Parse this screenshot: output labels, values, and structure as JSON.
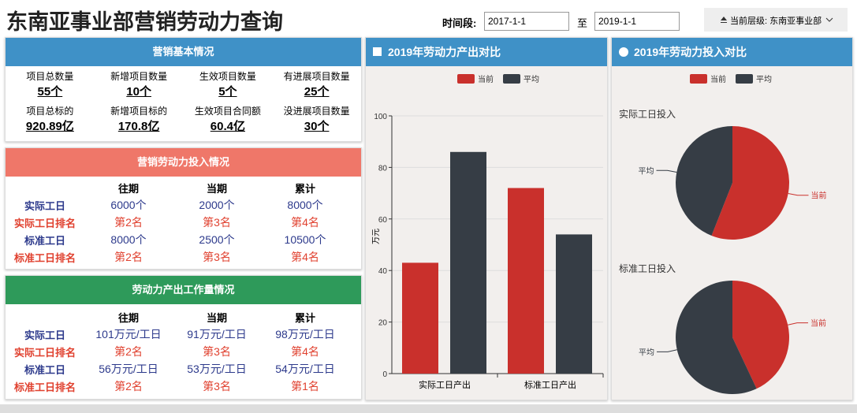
{
  "header": {
    "title": "东南亚事业部营销劳动力查询",
    "period_label": "时间段:",
    "start_date": "2017-1-1",
    "to": "至",
    "end_date": "2019-1-1",
    "level": "当前层级: 东南亚事业部"
  },
  "basic": {
    "title": "营销基本情况",
    "items": [
      {
        "label": "项目总数量",
        "value": "55个"
      },
      {
        "label": "新增项目数量",
        "value": "10个"
      },
      {
        "label": "生效项目数量",
        "value": "5个"
      },
      {
        "label": "有进展项目数量",
        "value": "25个"
      },
      {
        "label": "项目总标的",
        "value": "920.89亿"
      },
      {
        "label": "新增项目标的",
        "value": "170.8亿"
      },
      {
        "label": "生效项目合同额",
        "value": "60.4亿"
      },
      {
        "label": "没进展项目数量",
        "value": "30个"
      }
    ]
  },
  "input": {
    "title": "营销劳动力投入情况",
    "columns": [
      "往期",
      "当期",
      "累计"
    ],
    "rows": [
      {
        "label": "实际工日",
        "cells": [
          "6000个",
          "2000个",
          "8000个"
        ]
      },
      {
        "label": "实际工日排名",
        "cells": [
          "第2名",
          "第3名",
          "第4名"
        ]
      },
      {
        "label": "标准工日",
        "cells": [
          "8000个",
          "2500个",
          "10500个"
        ]
      },
      {
        "label": "标准工日排名",
        "cells": [
          "第2名",
          "第3名",
          "第4名"
        ]
      }
    ]
  },
  "output": {
    "title": "劳动力产出工作量情况",
    "columns": [
      "往期",
      "当期",
      "累计"
    ],
    "rows": [
      {
        "label": "实际工日",
        "cells": [
          "101万元/工日",
          "91万元/工日",
          "98万元/工日"
        ]
      },
      {
        "label": "实际工日排名",
        "cells": [
          "第2名",
          "第3名",
          "第4名"
        ]
      },
      {
        "label": "标准工日",
        "cells": [
          "56万元/工日",
          "53万元/工日",
          "54万元/工日"
        ]
      },
      {
        "label": "标准工日排名",
        "cells": [
          "第2名",
          "第3名",
          "第1名"
        ]
      }
    ]
  },
  "pie_panel": {
    "title": "2019年劳动力投入对比"
  },
  "chart_data": [
    {
      "type": "bar",
      "title": "2019年劳动力产出对比",
      "y_label": "万元",
      "categories": [
        "实际工日产出",
        "标准工日产出"
      ],
      "series": [
        {
          "name": "当前",
          "color": "#c9302c",
          "values": [
            43,
            72
          ]
        },
        {
          "name": "平均",
          "color": "#363d45",
          "values": [
            86,
            54
          ]
        }
      ],
      "ylim": [
        0,
        100
      ],
      "yticks": [
        0,
        20,
        40,
        60,
        80,
        100
      ],
      "grid": true
    },
    {
      "type": "pie",
      "title": "实际工日投入",
      "categories": [
        "当前",
        "平均"
      ],
      "values": [
        56,
        44
      ],
      "colors": [
        "#c9302c",
        "#363d45"
      ]
    },
    {
      "type": "pie",
      "title": "标准工日投入",
      "categories": [
        "当前",
        "平均"
      ],
      "values": [
        43,
        57
      ],
      "colors": [
        "#c9302c",
        "#363d45"
      ]
    }
  ]
}
